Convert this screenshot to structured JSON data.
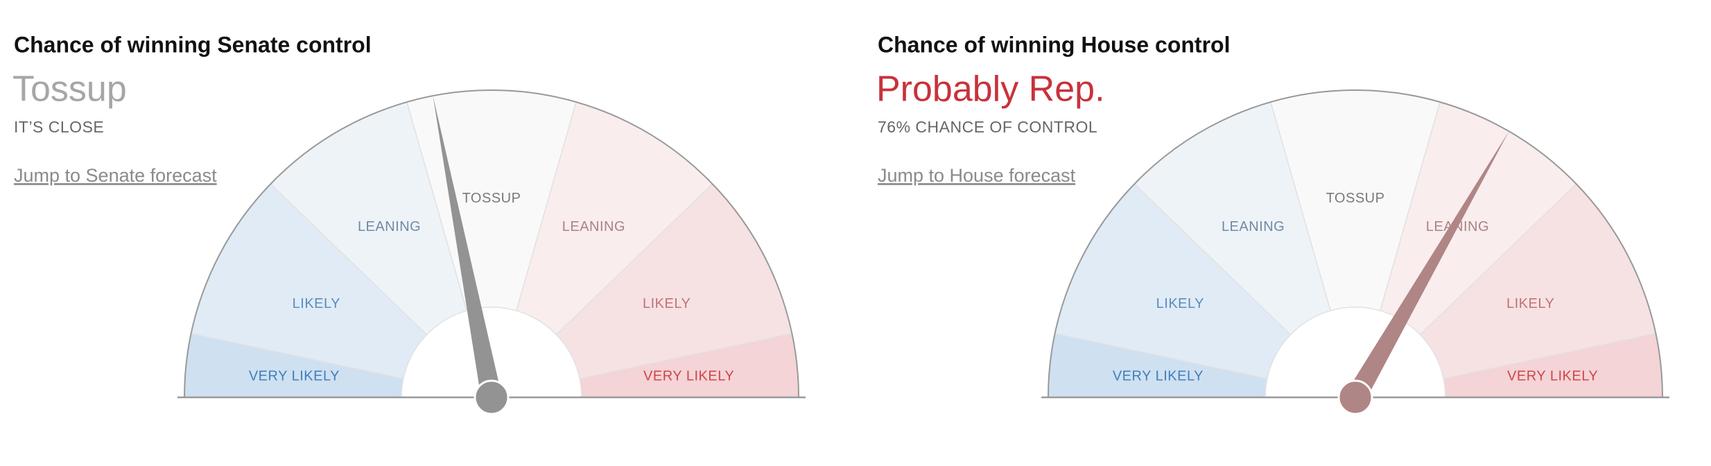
{
  "chart_data": [
    {
      "type": "gauge",
      "title": "Chance of winning Senate control",
      "subtitle": "Tossup",
      "subtitle_color": "#a6a6a6",
      "note": "IT’S CLOSE",
      "link": "Jump to Senate forecast",
      "xlim": [
        0,
        180
      ],
      "value": 79,
      "needle_color": "#939393",
      "categories": [
        "VERY LIKELY",
        "LIKELY",
        "LEANING",
        "TOSSUP",
        "LEANING",
        "LIKELY",
        "VERY LIKELY"
      ],
      "edges": [
        0,
        12,
        44,
        74,
        106,
        136,
        168,
        180
      ],
      "colors": [
        "#cfe0f1",
        "#e0ebf6",
        "#eef3f8",
        "#f9f9f9",
        "#f9eded",
        "#f6e2e3",
        "#f4d4d6"
      ],
      "label_colors": [
        "#3f7fba",
        "#5a8cbd",
        "#6f8aa3",
        "#7a7a7a",
        "#a98287",
        "#c27176",
        "#cf444c"
      ]
    },
    {
      "type": "gauge",
      "title": "Chance of winning House control",
      "subtitle": "Probably Rep.",
      "subtitle_color": "#c8323b",
      "note": "76% CHANCE OF CONTROL",
      "link": "Jump to House forecast",
      "xlim": [
        0,
        180
      ],
      "value": 120,
      "needle_color": "#b08585",
      "categories": [
        "VERY LIKELY",
        "LIKELY",
        "LEANING",
        "TOSSUP",
        "LEANING",
        "LIKELY",
        "VERY LIKELY"
      ],
      "edges": [
        0,
        12,
        44,
        74,
        106,
        136,
        168,
        180
      ],
      "colors": [
        "#cfe0f1",
        "#e0ebf6",
        "#eef3f8",
        "#f9f9f9",
        "#f9eded",
        "#f6e2e3",
        "#f4d4d6"
      ],
      "label_colors": [
        "#3f7fba",
        "#5a8cbd",
        "#6f8aa3",
        "#7a7a7a",
        "#a98287",
        "#c27176",
        "#cf444c"
      ]
    }
  ]
}
